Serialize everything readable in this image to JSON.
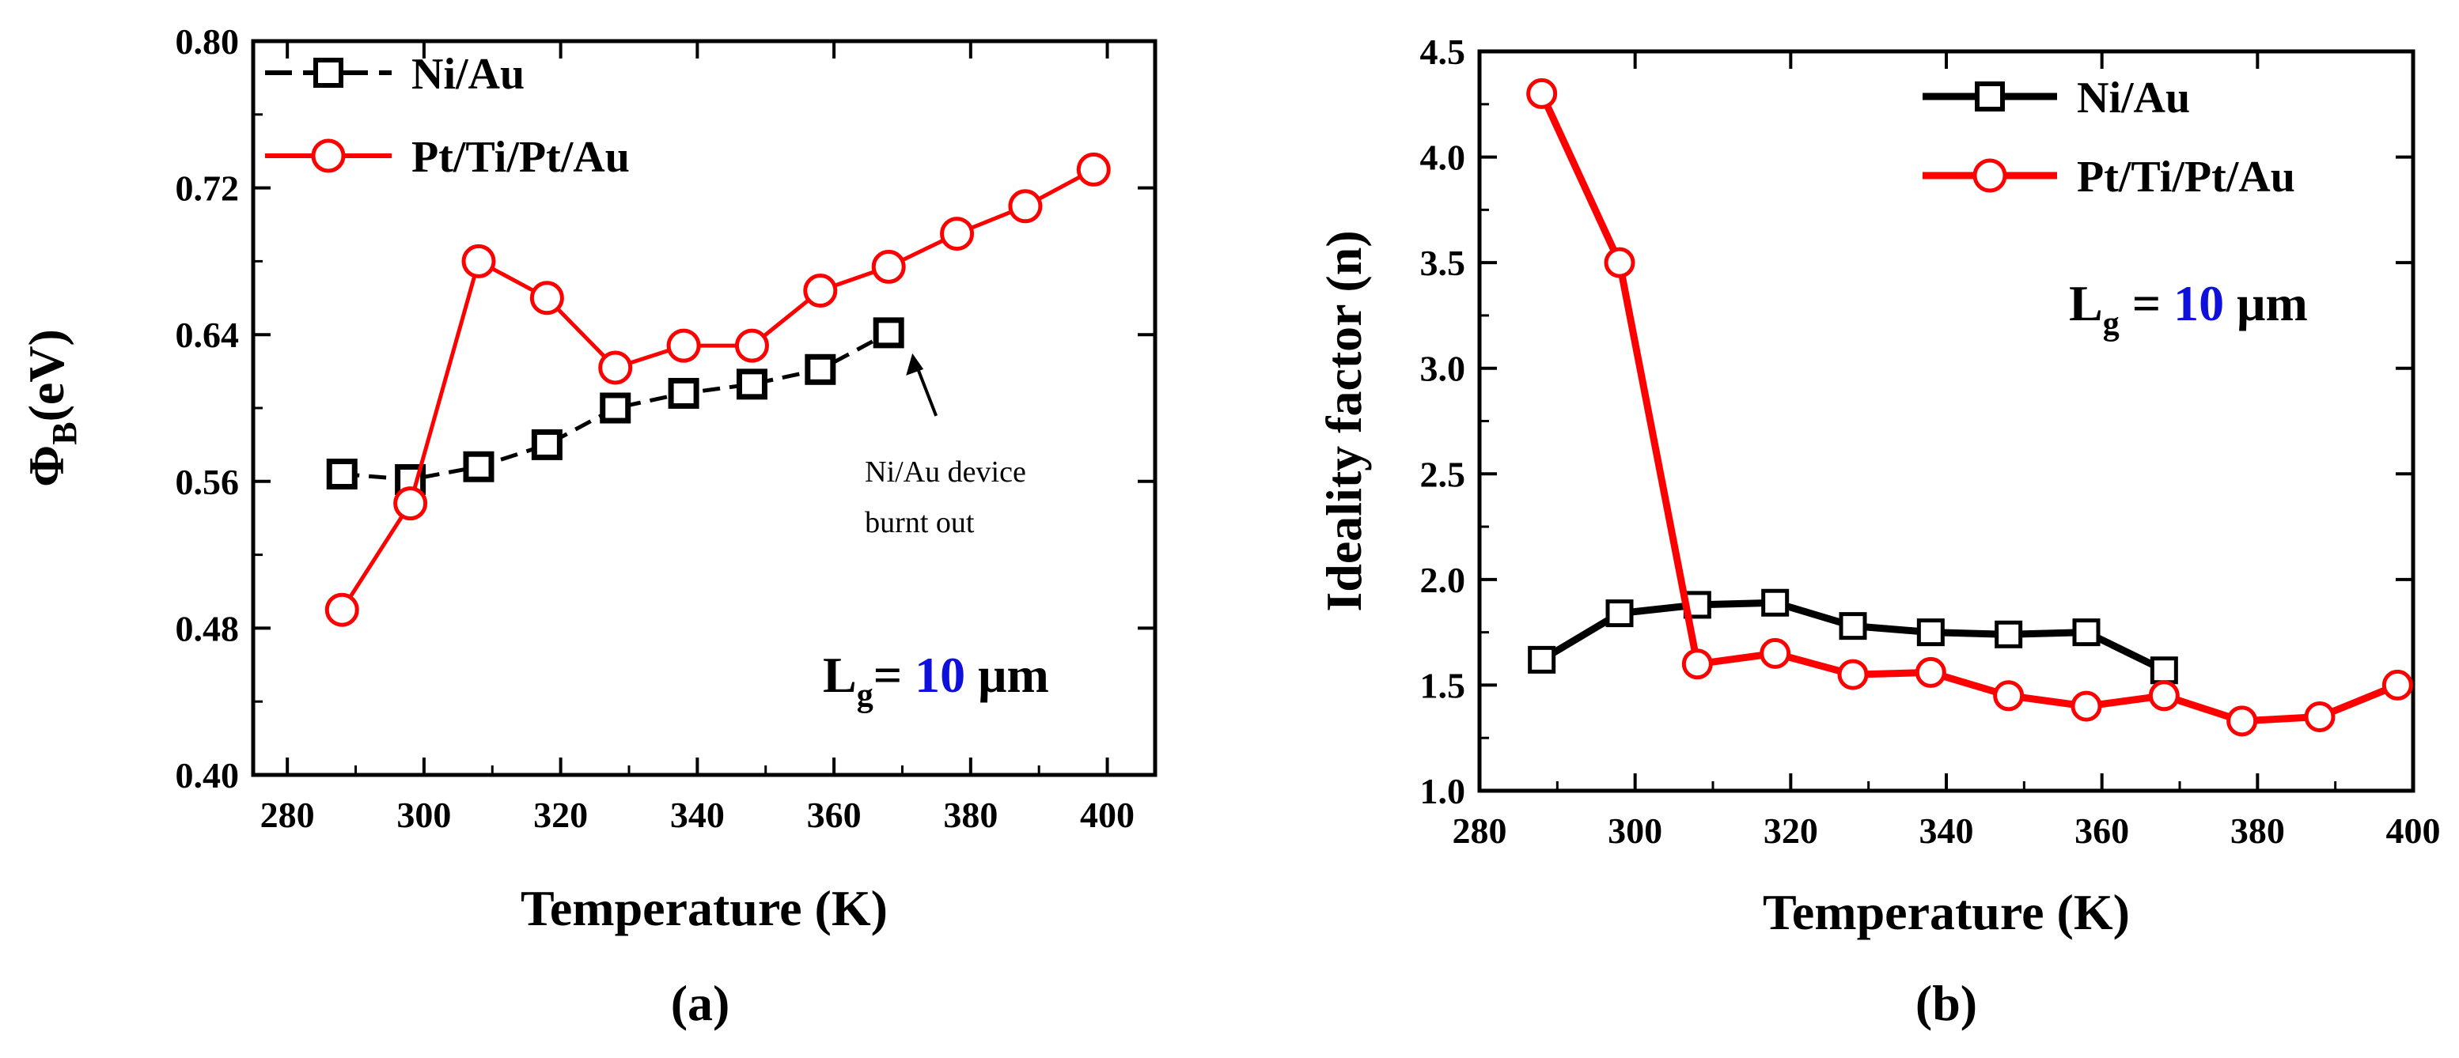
{
  "chart_data": [
    {
      "type": "line",
      "panel_label": "(a)",
      "title": "",
      "xlabel": "Temperature (K)",
      "ylabel": {
        "main": "Φ",
        "sub": "B",
        "rest": "(eV)"
      },
      "xlim": [
        275,
        407
      ],
      "ylim": [
        0.4,
        0.8
      ],
      "xticks": [
        280,
        300,
        320,
        340,
        360,
        380,
        400
      ],
      "yticks": [
        0.4,
        0.48,
        0.56,
        0.64,
        0.72,
        0.8
      ],
      "ytick_labels": [
        "0.40",
        "0.48",
        "0.56",
        "0.64",
        "0.72",
        "0.80"
      ],
      "legend_position": "top-left",
      "series": [
        {
          "name": "Ni/Au",
          "color": "#000000",
          "marker": "square",
          "dash": "dashed",
          "x": [
            288,
            298,
            308,
            318,
            328,
            338,
            348,
            358,
            368
          ],
          "y": [
            0.564,
            0.561,
            0.568,
            0.58,
            0.6,
            0.608,
            0.613,
            0.621,
            0.641
          ]
        },
        {
          "name": "Pt/Ti/Pt/Au",
          "color": "#ff0000",
          "marker": "circle",
          "dash": "solid",
          "x": [
            288,
            298,
            308,
            318,
            328,
            338,
            348,
            358,
            368,
            378,
            388,
            398
          ],
          "y": [
            0.49,
            0.548,
            0.68,
            0.66,
            0.622,
            0.634,
            0.634,
            0.664,
            0.677,
            0.695,
            0.71,
            0.73
          ]
        }
      ],
      "annotation": {
        "lines": [
          "Ni/Au device",
          "burnt out"
        ],
        "target_x": 368,
        "target_y": 0.641
      },
      "gate_label": {
        "prefix": "L",
        "subscript": "g",
        "equals": "= ",
        "value": "10",
        "unit": " μm",
        "value_color": "#1010dd"
      }
    },
    {
      "type": "line",
      "panel_label": "(b)",
      "title": "",
      "xlabel": "Temperature (K)",
      "ylabel": {
        "main": "Ideality factor (n)"
      },
      "xlim": [
        280,
        400
      ],
      "ylim": [
        1.0,
        4.5
      ],
      "xticks": [
        280,
        300,
        320,
        340,
        360,
        380,
        400
      ],
      "yticks": [
        1.0,
        1.5,
        2.0,
        2.5,
        3.0,
        3.5,
        4.0,
        4.5
      ],
      "ytick_labels": [
        "1.0",
        "1.5",
        "2.0",
        "2.5",
        "3.0",
        "3.5",
        "4.0",
        "4.5"
      ],
      "legend_position": "top-right",
      "series": [
        {
          "name": "Ni/Au",
          "color": "#000000",
          "marker": "square",
          "dash": "solid",
          "x": [
            288,
            298,
            308,
            318,
            328,
            338,
            348,
            358,
            368
          ],
          "y": [
            1.62,
            1.84,
            1.88,
            1.89,
            1.78,
            1.75,
            1.74,
            1.75,
            1.57
          ]
        },
        {
          "name": "Pt/Ti/Pt/Au",
          "color": "#ff0000",
          "marker": "circle",
          "dash": "solid",
          "x": [
            288,
            298,
            308,
            318,
            328,
            338,
            348,
            358,
            368,
            378,
            388,
            398
          ],
          "y": [
            4.3,
            3.5,
            1.6,
            1.65,
            1.55,
            1.56,
            1.45,
            1.4,
            1.45,
            1.33,
            1.35,
            1.5
          ]
        }
      ],
      "gate_label": {
        "prefix": "L",
        "subscript": "g",
        "equals": " = ",
        "value": "10",
        "unit": " μm",
        "value_color": "#1010dd"
      }
    }
  ]
}
